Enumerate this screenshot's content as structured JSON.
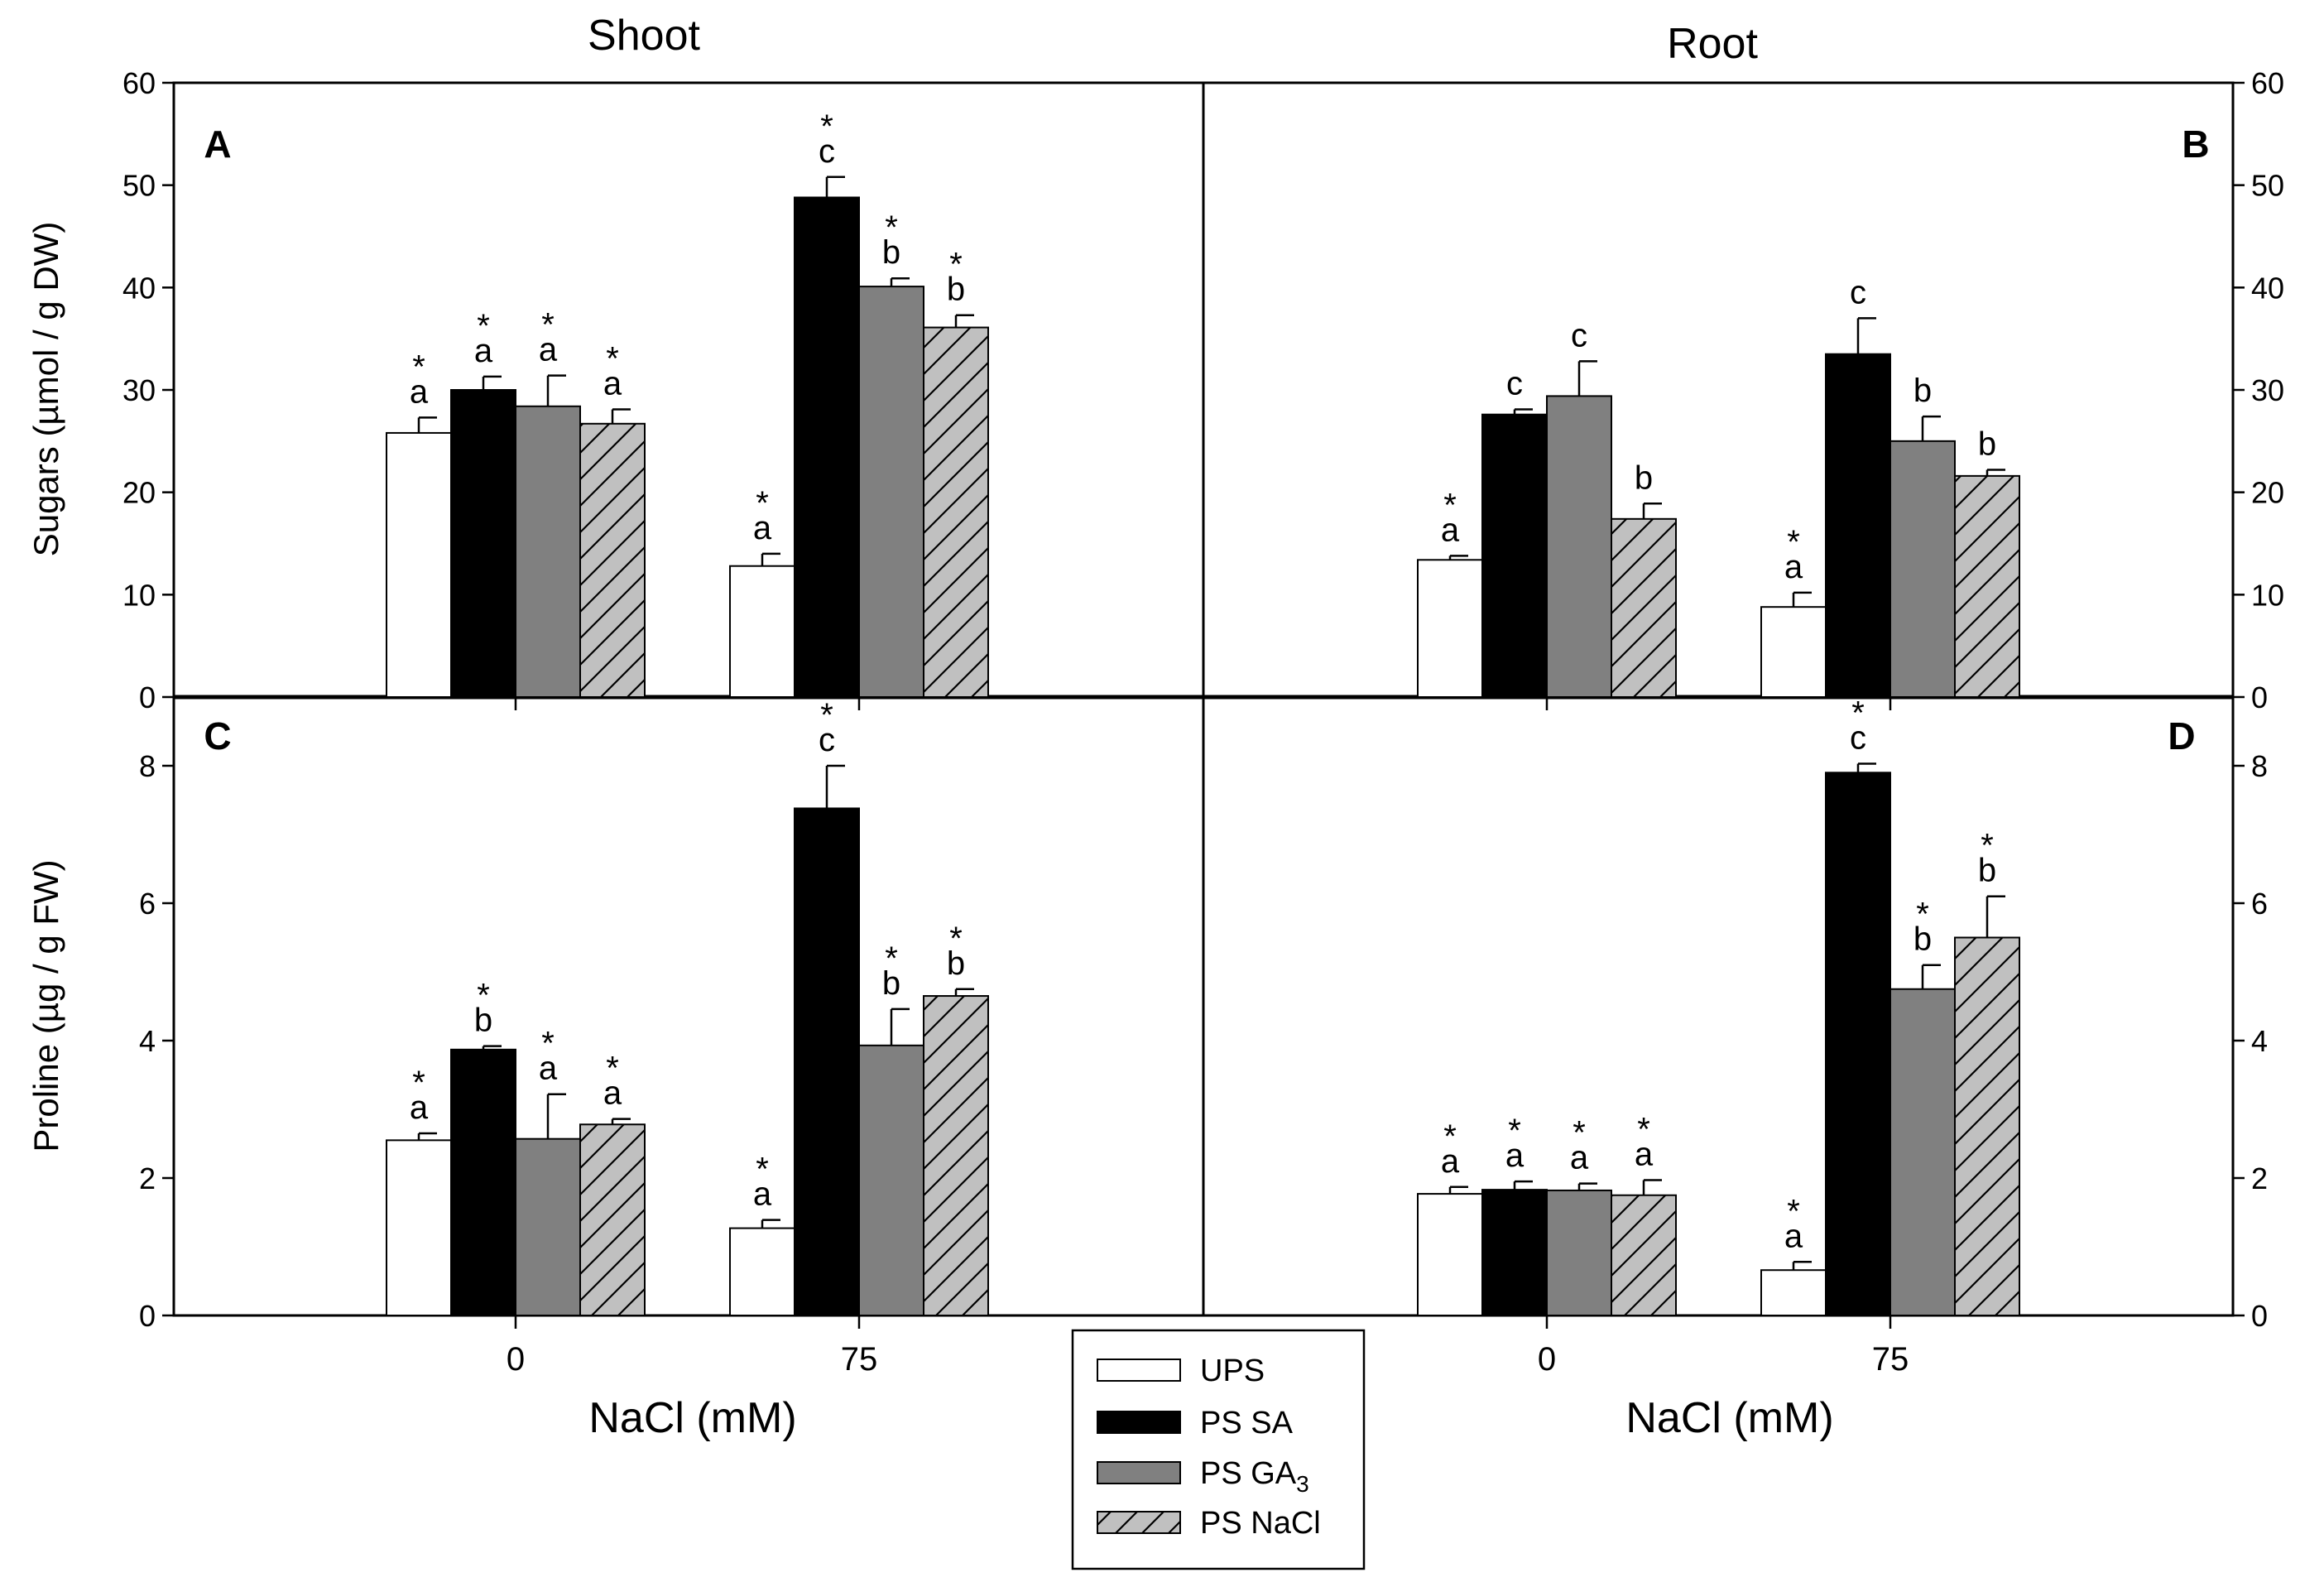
{
  "columns": {
    "left_title": "Shoot",
    "right_title": "Root"
  },
  "xaxis": {
    "label": "NaCl (mM)",
    "ticks": [
      "0",
      "75"
    ]
  },
  "legend": {
    "items": [
      {
        "label": "UPS",
        "fill": "white"
      },
      {
        "label": "PS SA",
        "fill": "black"
      },
      {
        "label": "PS GA",
        "sub": "3",
        "fill": "gray"
      },
      {
        "label": "PS NaCl",
        "fill": "hatch"
      }
    ]
  },
  "colors": {
    "white": "#ffffff",
    "black": "#000000",
    "gray": "#808080",
    "hatch_bg": "#c0c0c0"
  },
  "chart_data": [
    {
      "id": "A",
      "panel_label": "A",
      "type": "bar",
      "ylabel": "Sugars (µmol / g DW)",
      "ylim": [
        0,
        60
      ],
      "yticks": [
        "0",
        "10",
        "20",
        "30",
        "40",
        "50",
        "60"
      ],
      "categories": [
        "0",
        "75"
      ],
      "series": [
        {
          "name": "UPS",
          "values": [
            25.8,
            12.8
          ],
          "errors": [
            1.5,
            1.2
          ],
          "letters": [
            "a",
            "a"
          ],
          "stars": [
            true,
            true
          ]
        },
        {
          "name": "PS SA",
          "values": [
            30.0,
            48.8
          ],
          "errors": [
            1.3,
            2.0
          ],
          "letters": [
            "a",
            "c"
          ],
          "stars": [
            true,
            true
          ]
        },
        {
          "name": "PS GA3",
          "values": [
            28.4,
            40.1
          ],
          "errors": [
            3.0,
            0.8
          ],
          "letters": [
            "a",
            "b"
          ],
          "stars": [
            true,
            true
          ]
        },
        {
          "name": "PS NaCl",
          "values": [
            26.7,
            36.1
          ],
          "errors": [
            1.4,
            1.2
          ],
          "letters": [
            "a",
            "b"
          ],
          "stars": [
            true,
            true
          ]
        }
      ]
    },
    {
      "id": "B",
      "panel_label": "B",
      "type": "bar",
      "ylabel": "",
      "ylim": [
        0,
        60
      ],
      "yticks": [
        "0",
        "10",
        "20",
        "30",
        "40",
        "50",
        "60"
      ],
      "categories": [
        "0",
        "75"
      ],
      "series": [
        {
          "name": "UPS",
          "values": [
            13.4,
            8.8
          ],
          "errors": [
            0.4,
            1.4
          ],
          "letters": [
            "a",
            "a"
          ],
          "stars": [
            true,
            true
          ]
        },
        {
          "name": "PS SA",
          "values": [
            27.6,
            33.5
          ],
          "errors": [
            0.5,
            3.5
          ],
          "letters": [
            "c",
            "c"
          ],
          "stars": [
            false,
            false
          ]
        },
        {
          "name": "PS GA3",
          "values": [
            29.4,
            25.0
          ],
          "errors": [
            3.4,
            2.4
          ],
          "letters": [
            "c",
            "b"
          ],
          "stars": [
            false,
            false
          ]
        },
        {
          "name": "PS NaCl",
          "values": [
            17.4,
            21.6
          ],
          "errors": [
            1.5,
            0.6
          ],
          "letters": [
            "b",
            "b"
          ],
          "stars": [
            false,
            false
          ]
        }
      ]
    },
    {
      "id": "C",
      "panel_label": "C",
      "type": "bar",
      "ylabel": "Proline (µg / g FW)",
      "ylim": [
        0,
        9
      ],
      "yticks": [
        "0",
        "2",
        "4",
        "6",
        "8"
      ],
      "categories": [
        "0",
        "75"
      ],
      "series": [
        {
          "name": "UPS",
          "values": [
            2.55,
            1.27
          ],
          "errors": [
            0.1,
            0.12
          ],
          "letters": [
            "a",
            "a"
          ],
          "stars": [
            true,
            true
          ]
        },
        {
          "name": "PS SA",
          "values": [
            3.87,
            7.38
          ],
          "errors": [
            0.05,
            0.62
          ],
          "letters": [
            "b",
            "c"
          ],
          "stars": [
            true,
            true
          ]
        },
        {
          "name": "PS GA3",
          "values": [
            2.57,
            3.93
          ],
          "errors": [
            0.65,
            0.53
          ],
          "letters": [
            "a",
            "b"
          ],
          "stars": [
            true,
            true
          ]
        },
        {
          "name": "PS NaCl",
          "values": [
            2.78,
            4.65
          ],
          "errors": [
            0.08,
            0.1
          ],
          "letters": [
            "a",
            "b"
          ],
          "stars": [
            true,
            true
          ]
        }
      ]
    },
    {
      "id": "D",
      "panel_label": "D",
      "type": "bar",
      "ylabel": "",
      "ylim": [
        0,
        9
      ],
      "yticks": [
        "0",
        "2",
        "4",
        "6",
        "8"
      ],
      "categories": [
        "0",
        "75"
      ],
      "series": [
        {
          "name": "UPS",
          "values": [
            1.77,
            0.66
          ],
          "errors": [
            0.1,
            0.12
          ],
          "letters": [
            "a",
            "a"
          ],
          "stars": [
            true,
            true
          ]
        },
        {
          "name": "PS SA",
          "values": [
            1.83,
            7.9
          ],
          "errors": [
            0.12,
            0.13
          ],
          "letters": [
            "a",
            "c"
          ],
          "stars": [
            true,
            true
          ]
        },
        {
          "name": "PS GA3",
          "values": [
            1.82,
            4.75
          ],
          "errors": [
            0.1,
            0.35
          ],
          "letters": [
            "a",
            "b"
          ],
          "stars": [
            true,
            true
          ]
        },
        {
          "name": "PS NaCl",
          "values": [
            1.75,
            5.5
          ],
          "errors": [
            0.22,
            0.6
          ],
          "letters": [
            "a",
            "b"
          ],
          "stars": [
            true,
            true
          ]
        }
      ]
    }
  ]
}
